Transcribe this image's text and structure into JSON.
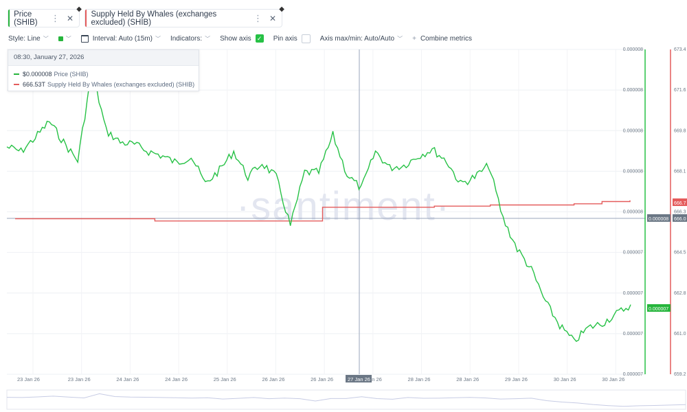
{
  "tabs": [
    {
      "label": "Price (SHIB)",
      "color": "#26b53c"
    },
    {
      "label": "Supply Held By Whales (exchanges excluded) (SHIB)",
      "color": "#e45b5b"
    }
  ],
  "toolbar": {
    "style": "Style: Line",
    "interval": "Interval: Auto (15m)",
    "indicators": "Indicators:",
    "show_axis": "Show axis",
    "pin_axis": "Pin axis",
    "axis_minmax": "Axis max/min: Auto/Auto",
    "combine": "Combine metrics",
    "plus": "+"
  },
  "tooltip": {
    "datetime": "08:30, January 27, 2026",
    "rows": [
      {
        "value": "$0.000008",
        "label": "Price (SHIB)",
        "color": "#26b53c"
      },
      {
        "value": "666.53T",
        "label": "Supply Held By Whales (exchanges excluded) (SHIB)",
        "color": "#e45b5b"
      }
    ]
  },
  "watermark": "·santiment·",
  "chart_data": {
    "type": "line",
    "x_ticks": [
      "23 Jan 26",
      "23 Jan 26",
      "24 Jan 26",
      "24 Jan 26",
      "25 Jan 26",
      "26 Jan 26",
      "26 Jan 26",
      "27 Jan 26",
      "28 Jan 26",
      "28 Jan 26",
      "29 Jan 26",
      "30 Jan 26",
      "30 Jan 26"
    ],
    "cursor_label": "27 Jan 26",
    "price_axis_ticks": [
      "0.000008",
      "0.000008",
      "0.000008",
      "0.000008",
      "0.000008",
      "0.000007",
      "0.000007",
      "0.000007",
      "0.000007"
    ],
    "supply_axis_ticks": [
      "673.4",
      "671.6",
      "669.8",
      "668.1",
      "666.3",
      "664.5",
      "662.8",
      "661.0",
      "659.2"
    ],
    "price_axis_badges": [
      {
        "text": "0.000008",
        "color": "#6b7785"
      },
      {
        "text": "0.000007",
        "color": "#26b53c"
      }
    ],
    "supply_axis_badges": [
      {
        "text": "666.7",
        "color": "#e45b5b"
      },
      {
        "text": "666.0",
        "color": "#6b7785"
      }
    ],
    "series": [
      {
        "name": "Price (SHIB)",
        "color": "#26b53c",
        "values": [
          7.98e-06,
          7.96e-06,
          8.02e-06,
          8.09e-06,
          8e-06,
          7.92e-06,
          8.31e-06,
          8.05e-06,
          8e-06,
          7.99e-06,
          7.96e-06,
          7.94e-06,
          7.91e-06,
          7.94e-06,
          7.82e-06,
          7.88e-06,
          7.96e-06,
          7.85e-06,
          7.91e-06,
          7.85e-06,
          7.64e-06,
          7.87e-06,
          7.87e-06,
          8.03e-06,
          7.86e-06,
          7.8e-06,
          7.96e-06,
          7.89e-06,
          7.9e-06,
          7.94e-06,
          7.97e-06,
          7.92e-06,
          7.82e-06,
          7.85e-06,
          7.9e-06,
          7.67e-06,
          7.54e-06,
          7.45e-06,
          7.31e-06,
          7.21e-06,
          7.14e-06,
          7.2e-06,
          7.22e-06,
          7.26e-06,
          7.3e-06
        ],
        "description": "Price traced across 23–30 Jan 26; left axis 0.000007–0.000008"
      },
      {
        "name": "Supply Held By Whales (exchanges excluded) (SHIB)",
        "x_index": [
          0,
          4,
          5,
          10,
          11,
          14,
          15,
          16,
          17,
          18,
          19,
          20,
          21,
          22
        ],
        "values": [
          666.0,
          666.0,
          665.9,
          665.9,
          666.5,
          666.5,
          666.55,
          666.55,
          666.6,
          666.6,
          666.6,
          666.65,
          666.75,
          666.8
        ],
        "color": "#e45b5b",
        "unit": "T"
      }
    ],
    "supply_ylim": [
      659.2,
      673.4
    ],
    "price_ylim": [
      7e-06,
      8.4e-06
    ],
    "grid": true
  }
}
